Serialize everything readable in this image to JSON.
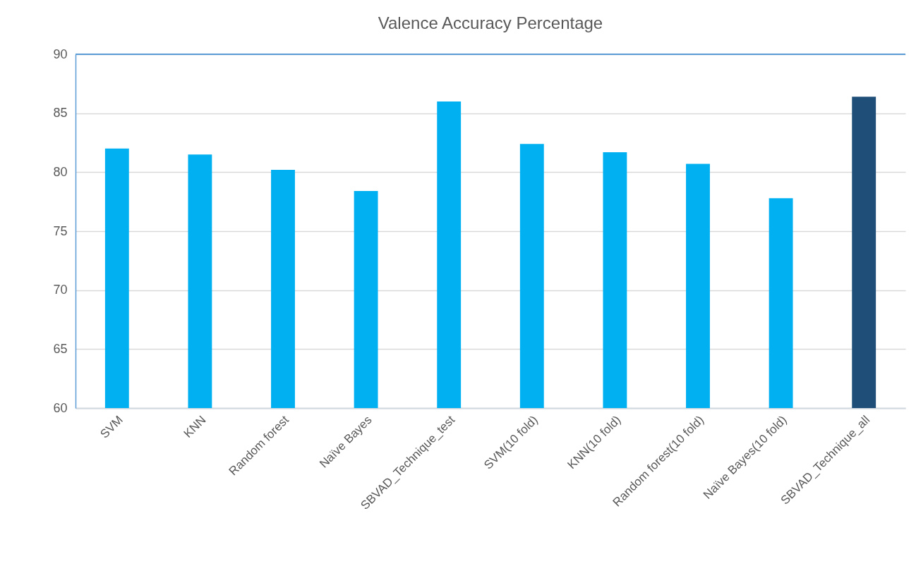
{
  "chart_data": {
    "type": "bar",
    "title": "Valence Accuracy Percentage",
    "categories": [
      "SVM",
      "KNN",
      "Random forest",
      "Naïve Bayes",
      "SBVAD_Technique_test",
      "SVM(10 fold)",
      "KNN(10 fold)",
      "Random forest(10 fold)",
      "Naïve Bayes(10 fold)",
      "SBVAD_Technique_all"
    ],
    "values": [
      82.0,
      81.5,
      80.2,
      78.4,
      86.0,
      82.4,
      81.7,
      80.7,
      77.8,
      86.4
    ],
    "colors": [
      "#00b0f0",
      "#00b0f0",
      "#00b0f0",
      "#00b0f0",
      "#00b0f0",
      "#00b0f0",
      "#00b0f0",
      "#00b0f0",
      "#00b0f0",
      "#1f4e79"
    ],
    "ylim": [
      60,
      90
    ],
    "yticks": [
      60,
      65,
      70,
      75,
      80,
      85,
      90
    ],
    "grid": "y"
  }
}
